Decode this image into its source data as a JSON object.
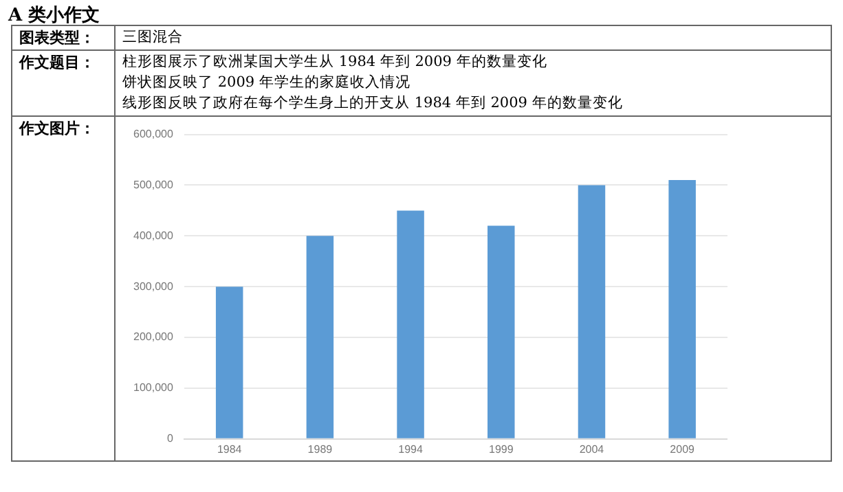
{
  "chart_data": {
    "type": "bar",
    "annotations": [
      "A 类小作文",
      "图表类型：",
      "三图混合",
      "作文题目：",
      "柱形图展示了欧洲某国大学生从 1984 年到 2009 年的数量变化",
      "饼状图反映了 2009 年学生的家庭收入情况",
      "线形图反映了政府在每个学生身上的开支从 1984 年到 2009 年的数量变化",
      "作文图片："
    ],
    "categories": [
      "1984",
      "1989",
      "1994",
      "1999",
      "2004",
      "2009"
    ],
    "values": [
      300000,
      400000,
      450000,
      420000,
      500000,
      510000
    ],
    "color": "#5b9bd5",
    "ylim": [
      0,
      600000
    ],
    "yticks": [
      {
        "value": 0,
        "label": "0"
      },
      {
        "value": 100000,
        "label": "100,000"
      },
      {
        "value": 200000,
        "label": "200,000"
      },
      {
        "value": 300000,
        "label": "300,000"
      },
      {
        "value": 400000,
        "label": "400,000"
      },
      {
        "value": 500000,
        "label": "500,000"
      },
      {
        "value": 600000,
        "label": "600,000"
      }
    ],
    "grid": "y"
  }
}
